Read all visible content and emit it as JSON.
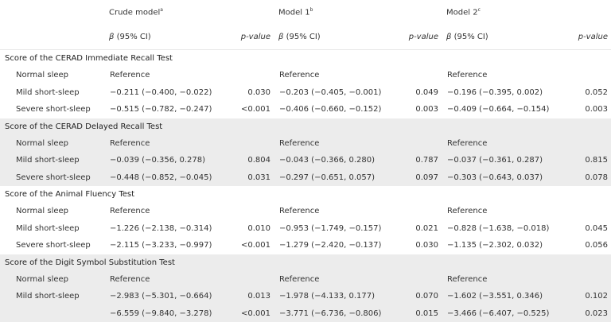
{
  "headers": {
    "models": [
      {
        "name": "Crude model",
        "sup": "a"
      },
      {
        "name": "Model 1",
        "sup": "b"
      },
      {
        "name": "Model 2",
        "sup": "c"
      }
    ],
    "beta_symbol": "β",
    "beta_label": " (95% CI)",
    "pvalue_label": "p-value"
  },
  "sections": [
    {
      "title": "Score of the CERAD Immediate Recall Test",
      "rows": [
        {
          "label": "Normal sleep",
          "cells": [
            [
              "Reference",
              ""
            ],
            [
              "Reference",
              ""
            ],
            [
              "Reference",
              ""
            ]
          ]
        },
        {
          "label": "Mild short-sleep",
          "cells": [
            [
              "−0.211 (−0.400, −0.022)",
              "0.030"
            ],
            [
              "−0.203 (−0.405, −0.001)",
              "0.049"
            ],
            [
              "−0.196 (−0.395, 0.002)",
              "0.052"
            ]
          ]
        },
        {
          "label": "Severe short-sleep",
          "cells": [
            [
              "−0.515 (−0.782, −0.247)",
              "<0.001"
            ],
            [
              "−0.406 (−0.660, −0.152)",
              "0.003"
            ],
            [
              "−0.409 (−0.664, −0.154)",
              "0.003"
            ]
          ]
        }
      ]
    },
    {
      "title": "Score of the CERAD Delayed Recall Test",
      "rows": [
        {
          "label": "Normal sleep",
          "cells": [
            [
              "Reference",
              ""
            ],
            [
              "Reference",
              ""
            ],
            [
              "Reference",
              ""
            ]
          ]
        },
        {
          "label": "Mild short-sleep",
          "cells": [
            [
              "−0.039 (−0.356, 0.278)",
              "0.804"
            ],
            [
              "−0.043 (−0.366, 0.280)",
              "0.787"
            ],
            [
              "−0.037 (−0.361, 0.287)",
              "0.815"
            ]
          ]
        },
        {
          "label": "Severe short-sleep",
          "cells": [
            [
              "−0.448 (−0.852, −0.045)",
              "0.031"
            ],
            [
              "−0.297 (−0.651, 0.057)",
              "0.097"
            ],
            [
              "−0.303 (−0.643, 0.037)",
              "0.078"
            ]
          ]
        }
      ]
    },
    {
      "title": "Score of the Animal Fluency Test",
      "rows": [
        {
          "label": "Normal sleep",
          "cells": [
            [
              "Reference",
              ""
            ],
            [
              "Reference",
              ""
            ],
            [
              "Reference",
              ""
            ]
          ]
        },
        {
          "label": "Mild short-sleep",
          "cells": [
            [
              "−1.226 (−2.138, −0.314)",
              "0.010"
            ],
            [
              "−0.953 (−1.749, −0.157)",
              "0.021"
            ],
            [
              "−0.828 (−1.638, −0.018)",
              "0.045"
            ]
          ]
        },
        {
          "label": "Severe short-sleep",
          "cells": [
            [
              "−2.115 (−3.233, −0.997)",
              "<0.001"
            ],
            [
              "−1.279 (−2.420, −0.137)",
              "0.030"
            ],
            [
              "−1.135 (−2.302, 0.032)",
              "0.056"
            ]
          ]
        }
      ]
    },
    {
      "title": "Score of the Digit Symbol Substitution Test",
      "rows": [
        {
          "label": "Normal sleep",
          "cells": [
            [
              "Reference",
              ""
            ],
            [
              "Reference",
              ""
            ],
            [
              "Reference",
              ""
            ]
          ]
        },
        {
          "label": "Mild short-sleep",
          "cells": [
            [
              "−2.983 (−5.301, −0.664)",
              "0.013"
            ],
            [
              "−1.978 (−4.133, 0.177)",
              "0.070"
            ],
            [
              "−1.602 (−3.551, 0.346)",
              "0.102"
            ]
          ]
        },
        {
          "label": "",
          "cells": [
            [
              "−6.559 (−9.840, −3.278)",
              "<0.001"
            ],
            [
              "−3.771 (−6.736, −0.806)",
              "0.015"
            ],
            [
              "−3.466 (−6.407, −0.525)",
              "0.023"
            ]
          ]
        }
      ]
    }
  ]
}
